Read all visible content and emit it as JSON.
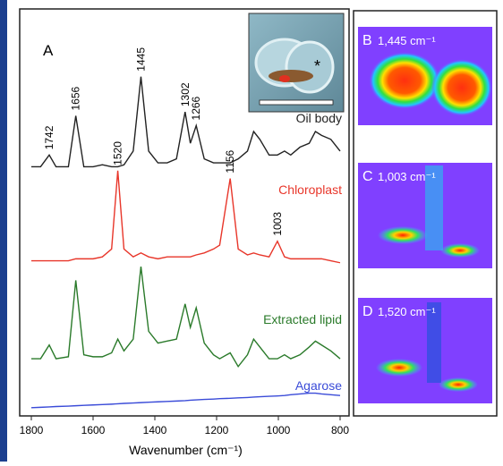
{
  "chart_data": {
    "type": "line",
    "panel_label": "A",
    "x": [
      1800,
      1770,
      1742,
      1720,
      1680,
      1656,
      1630,
      1600,
      1570,
      1540,
      1520,
      1500,
      1470,
      1445,
      1420,
      1390,
      1360,
      1330,
      1302,
      1285,
      1266,
      1240,
      1210,
      1190,
      1156,
      1130,
      1100,
      1080,
      1060,
      1030,
      1003,
      980,
      960,
      930,
      900,
      880,
      860,
      830,
      800
    ],
    "series": [
      {
        "name": "Oil body",
        "color": "#222222",
        "peaks": [
          1742,
          1656,
          1445,
          1302,
          1266
        ],
        "values": [
          62,
          62,
          65,
          62,
          62,
          75,
          62,
          62,
          62.5,
          62,
          62,
          62.5,
          66,
          85,
          66,
          63,
          63,
          64,
          76,
          68,
          72.5,
          64,
          63,
          63,
          63,
          64,
          66,
          71,
          69,
          65,
          65,
          66,
          65,
          67,
          68,
          71,
          70,
          69,
          66
        ]
      },
      {
        "name": "Chloroplast",
        "color": "#e8362a",
        "peaks": [
          1520,
          1156,
          1003
        ],
        "values": [
          38,
          38,
          38,
          38,
          38,
          38.5,
          38.5,
          38.5,
          39,
          41,
          61,
          41,
          39,
          40,
          39,
          38.5,
          39,
          39,
          39,
          39,
          39.5,
          40,
          41,
          42,
          59,
          41,
          39.5,
          40,
          39.5,
          39,
          43,
          39,
          38.5,
          38.5,
          38.5,
          38.5,
          38.5,
          38,
          37.5
        ]
      },
      {
        "name": "Extracted lipid",
        "color": "#2a7a2a",
        "values": [
          13,
          13,
          16.5,
          13,
          13.5,
          33,
          14,
          13.5,
          13.5,
          14.5,
          18,
          15,
          18,
          36.5,
          20,
          17,
          17.5,
          18,
          27,
          21,
          26,
          17,
          14,
          13,
          14.5,
          11,
          14,
          18,
          16,
          13,
          13,
          14,
          13,
          14,
          16,
          17.5,
          16.5,
          15,
          13
        ]
      },
      {
        "name": "Agarose",
        "color": "#3a4bd8",
        "values": [
          0.5,
          0.6,
          0.7,
          0.8,
          0.9,
          1,
          1.1,
          1.2,
          1.3,
          1.4,
          1.5,
          1.6,
          1.7,
          1.8,
          1.9,
          2,
          2.1,
          2.2,
          2.3,
          2.4,
          2.5,
          2.6,
          2.7,
          2.8,
          2.9,
          3,
          3.1,
          3.2,
          3.3,
          3.4,
          3.5,
          3.6,
          3.8,
          4,
          4.2,
          4.2,
          4,
          3.8,
          3.6
        ]
      }
    ],
    "xlim": [
      1800,
      800
    ],
    "xticks": [
      1800,
      1600,
      1400,
      1200,
      1000,
      800
    ],
    "ylim": [
      0,
      100
    ],
    "xlabel": "Wavenumber (cm⁻¹)",
    "inset_marker": "*"
  },
  "panels": [
    {
      "letter": "B",
      "label": "1,445 cm⁻¹"
    },
    {
      "letter": "C",
      "label": "1,003 cm⁻¹"
    },
    {
      "letter": "D",
      "label": "1,520 cm⁻¹"
    }
  ]
}
